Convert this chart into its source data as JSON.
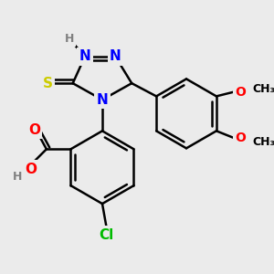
{
  "background_color": "#ebebeb",
  "bond_color": "#000000",
  "bond_width": 1.8,
  "atom_colors": {
    "N": "#0000ff",
    "O": "#ff0000",
    "S": "#cccc00",
    "Cl": "#00bb00",
    "C": "#000000",
    "H": "#808080"
  },
  "font_size_large": 11,
  "font_size_medium": 10,
  "font_size_small": 9
}
